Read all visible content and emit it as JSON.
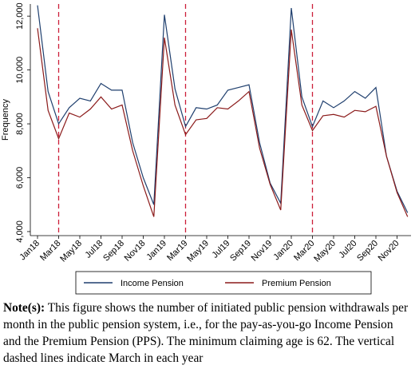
{
  "chart_data": {
    "type": "line",
    "y_label": "Frequency",
    "categories": [
      "Jan18",
      null,
      "Mar18",
      null,
      "May18",
      null,
      "Jul18",
      null,
      "Sep18",
      null,
      "Nov18",
      null,
      "Jan19",
      null,
      "Mar19",
      null,
      "May19",
      null,
      "Jul19",
      null,
      "Sep19",
      null,
      "Nov19",
      null,
      "Jan20",
      null,
      "Mar20",
      null,
      "May20",
      null,
      "Jul20",
      null,
      "Sep20",
      null,
      "Nov20",
      null
    ],
    "series": [
      {
        "name": "Income Pension",
        "color": "#1f3f6e",
        "values": [
          12400,
          9200,
          8000,
          8600,
          8950,
          8850,
          9500,
          9250,
          9250,
          7300,
          6000,
          5000,
          12050,
          9300,
          7900,
          8600,
          8550,
          8700,
          9250,
          9350,
          9450,
          7300,
          5800,
          5050,
          12300,
          9000,
          7900,
          8850,
          8600,
          8850,
          9200,
          8950,
          9350,
          6800,
          5500,
          4700
        ]
      },
      {
        "name": "Premium Pension",
        "color": "#8b1a1a",
        "values": [
          11550,
          8500,
          7450,
          8400,
          8250,
          8550,
          9000,
          8550,
          8700,
          7000,
          5700,
          4550,
          11200,
          8700,
          7600,
          8150,
          8200,
          8600,
          8550,
          8850,
          9200,
          7100,
          5750,
          4800,
          11500,
          8700,
          7750,
          8300,
          8350,
          8250,
          8500,
          8450,
          8650,
          6800,
          5450,
          4550
        ]
      }
    ],
    "ylim": [
      3850,
      12450
    ],
    "yticks": [
      {
        "value": 4000,
        "label": "4,000"
      },
      {
        "value": 6000,
        "label": "6,000"
      },
      {
        "value": 8000,
        "label": "8,000"
      },
      {
        "value": 10000,
        "label": "10,000"
      },
      {
        "value": 12000,
        "label": "12,000"
      }
    ],
    "vlines": [
      "Mar18",
      "Mar19",
      "Mar20"
    ],
    "vline_color": "#cc1f3a",
    "legend": "bottom",
    "note_label": "Note(s):",
    "note_text": "This figure shows the number of initiated public pension withdrawals per month in the public pension system, i.e., for the pay-as-you-go Income Pension and the Premium Pension (PPS). The minimum claiming age is 62. The vertical dashed lines indicate March in each year"
  }
}
